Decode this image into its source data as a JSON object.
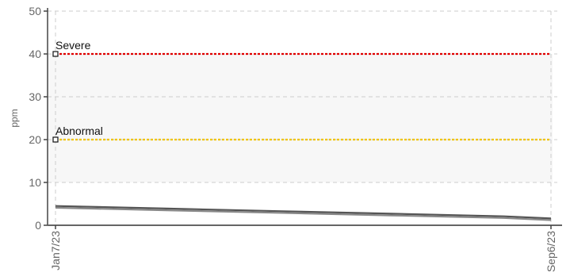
{
  "chart_data": {
    "type": "line",
    "title": "",
    "xlabel": "",
    "ylabel": "ppm",
    "ylim": [
      0,
      50
    ],
    "yticks": [
      0,
      10,
      20,
      30,
      40,
      50
    ],
    "xlim": [
      "2023-01-07",
      "2023-09-06"
    ],
    "x_tick_labels": [
      {
        "date": "2023-01-07",
        "label": "Jan7/23"
      },
      {
        "date": "2023-09-06",
        "label": "Sep6/23"
      }
    ],
    "grid": true,
    "legend": "none",
    "bands": [
      {
        "from": 10,
        "to": 40,
        "color": "#f7f7f7"
      }
    ],
    "thresholds": [
      {
        "label": "Severe",
        "value": 40,
        "color": "#e00000"
      },
      {
        "label": "Abnormal",
        "value": 20,
        "color": "#f0c400"
      }
    ],
    "series": [
      {
        "color": "#555555",
        "points": [
          {
            "x": "2023-01-07",
            "y": 4.5
          },
          {
            "x": "2023-03-02",
            "y": 3.9
          },
          {
            "x": "2023-04-26",
            "y": 3.3
          },
          {
            "x": "2023-06-20",
            "y": 2.7
          },
          {
            "x": "2023-08-14",
            "y": 2.1
          },
          {
            "x": "2023-09-06",
            "y": 1.6
          }
        ]
      },
      {
        "color": "#888888",
        "points": [
          {
            "x": "2023-01-07",
            "y": 4.1
          },
          {
            "x": "2023-03-02",
            "y": 3.5
          },
          {
            "x": "2023-04-26",
            "y": 2.9
          },
          {
            "x": "2023-06-20",
            "y": 2.3
          },
          {
            "x": "2023-08-14",
            "y": 1.7
          },
          {
            "x": "2023-09-06",
            "y": 1.2
          }
        ]
      }
    ]
  }
}
